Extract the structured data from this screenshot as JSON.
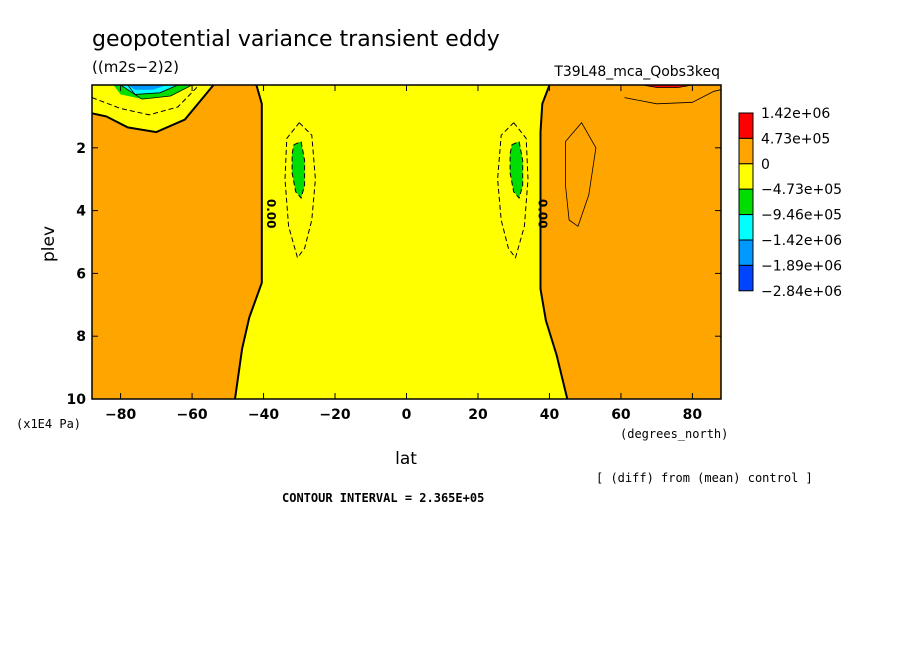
{
  "chart_data": {
    "type": "heatmap",
    "title": "geopotential variance transient eddy",
    "units": "((m2s−2)2)",
    "run_label": "T39L48_mca_Qobs3keq",
    "xlabel": "lat",
    "xunits": "(degrees_north)",
    "ylabel": "plev",
    "yunits": "(x1E4 Pa)",
    "xlim": [
      -88,
      88
    ],
    "ylim": [
      10,
      0
    ],
    "x_ticks": [
      -80,
      -60,
      -40,
      -20,
      0,
      20,
      40,
      60,
      80
    ],
    "x_tick_labels": [
      "−80",
      "−60",
      "−40",
      "−20",
      "0",
      "20",
      "40",
      "60",
      "80"
    ],
    "y_ticks": [
      2,
      4,
      6,
      8,
      10
    ],
    "y_tick_labels": [
      "2",
      "4",
      "6",
      "8",
      "10"
    ],
    "diff_note": "[ (diff) from (mean) control ]",
    "contour_interval": "CONTOUR INTERVAL = 2.365E+05",
    "contour_labels": [
      {
        "text": "0.00",
        "lat": -39,
        "plev": 4.1
      },
      {
        "text": "0.00",
        "lat": 37,
        "plev": 4.1
      }
    ],
    "legend": {
      "labels": [
        "1.42e+06",
        "4.73e+05",
        "0",
        "−4.73e+05",
        "−9.46e+05",
        "−1.42e+06",
        "−1.89e+06",
        "−2.84e+06"
      ],
      "colors": [
        "#ff0000",
        "#ffa500",
        "#ffff00",
        "#00dd00",
        "#00ffff",
        "#0099ff",
        "#0044ff"
      ]
    },
    "regions": [
      {
        "name": "southern-positive",
        "color": "#ffa500",
        "polygon": [
          [
            -88,
            0
          ],
          [
            -42,
            0
          ],
          [
            -40.5,
            0.6
          ],
          [
            -40.5,
            6.3
          ],
          [
            -44,
            7.4
          ],
          [
            -46,
            8.4
          ],
          [
            -48,
            10
          ],
          [
            -88,
            10
          ]
        ]
      },
      {
        "name": "northern-positive",
        "color": "#ffa500",
        "polygon": [
          [
            88,
            0
          ],
          [
            40,
            0
          ],
          [
            38,
            0.6
          ],
          [
            37.5,
            1.5
          ],
          [
            37.5,
            6.5
          ],
          [
            39,
            7.5
          ],
          [
            42,
            8.6
          ],
          [
            45,
            10
          ],
          [
            88,
            10
          ]
        ]
      },
      {
        "name": "polar-negative",
        "color": "#ffff00",
        "polygon": [
          [
            -88,
            0
          ],
          [
            -54,
            0
          ],
          [
            -62,
            1.1
          ],
          [
            -70,
            1.5
          ],
          [
            -78,
            1.35
          ],
          [
            -84,
            1.0
          ],
          [
            -88,
            0.9
          ]
        ]
      },
      {
        "name": "south-negative-core",
        "color": "#00dd00",
        "polygon": [
          [
            -31.5,
            1.9
          ],
          [
            -29.5,
            1.8
          ],
          [
            -28.5,
            2.4
          ],
          [
            -28.5,
            3.2
          ],
          [
            -29.5,
            3.6
          ],
          [
            -31,
            3.4
          ],
          [
            -32,
            2.8
          ],
          [
            -32,
            2.2
          ]
        ]
      },
      {
        "name": "north-negative-core",
        "color": "#00dd00",
        "polygon": [
          [
            29.5,
            1.9
          ],
          [
            31.5,
            1.8
          ],
          [
            32.5,
            2.4
          ],
          [
            32.5,
            3.2
          ],
          [
            31.5,
            3.6
          ],
          [
            30,
            3.4
          ],
          [
            29,
            2.8
          ],
          [
            29,
            2.2
          ]
        ]
      },
      {
        "name": "polar-strong-green",
        "color": "#00dd00",
        "polygon": [
          [
            -82,
            0
          ],
          [
            -60,
            0
          ],
          [
            -66,
            0.35
          ],
          [
            -74,
            0.45
          ],
          [
            -80,
            0.3
          ]
        ]
      },
      {
        "name": "polar-cyan",
        "color": "#00ffff",
        "polygon": [
          [
            -80,
            0
          ],
          [
            -64,
            0
          ],
          [
            -69,
            0.25
          ],
          [
            -76,
            0.3
          ]
        ]
      },
      {
        "name": "polar-blue",
        "color": "#0099ff",
        "polygon": [
          [
            -78,
            0
          ],
          [
            -67,
            0
          ],
          [
            -71,
            0.15
          ],
          [
            -76,
            0.15
          ]
        ]
      },
      {
        "name": "north-red",
        "color": "#ff0000",
        "polygon": [
          [
            66,
            0
          ],
          [
            80,
            0
          ],
          [
            76,
            0.08
          ],
          [
            70,
            0.08
          ]
        ]
      }
    ],
    "contours": [
      {
        "style": "solid",
        "points": [
          [
            -42,
            0
          ],
          [
            -40.5,
            0.6
          ],
          [
            -40.5,
            6.3
          ],
          [
            -44,
            7.4
          ],
          [
            -46,
            8.4
          ],
          [
            -48,
            10
          ]
        ]
      },
      {
        "style": "solid",
        "points": [
          [
            40,
            0
          ],
          [
            38,
            0.6
          ],
          [
            37.5,
            1.5
          ],
          [
            37.5,
            6.5
          ],
          [
            39,
            7.5
          ],
          [
            42,
            8.6
          ],
          [
            45,
            10
          ]
        ]
      },
      {
        "style": "solid",
        "points": [
          [
            -88,
            0.9
          ],
          [
            -84,
            1.0
          ],
          [
            -78,
            1.35
          ],
          [
            -70,
            1.5
          ],
          [
            -62,
            1.1
          ],
          [
            -54,
            0
          ]
        ]
      },
      {
        "style": "dashed",
        "points": [
          [
            -88,
            0.4
          ],
          [
            -80,
            0.75
          ],
          [
            -72,
            0.95
          ],
          [
            -64,
            0.7
          ],
          [
            -58,
            0
          ]
        ]
      },
      {
        "style": "dashed",
        "points": [
          [
            -30,
            1.2
          ],
          [
            -26.5,
            1.6
          ],
          [
            -25.5,
            3.0
          ],
          [
            -26.5,
            4.3
          ],
          [
            -28.5,
            5.2
          ],
          [
            -30.5,
            5.5
          ],
          [
            -33,
            4.5
          ],
          [
            -34,
            3.0
          ],
          [
            -33.5,
            1.7
          ],
          [
            -30,
            1.2
          ]
        ]
      },
      {
        "style": "dashed",
        "points": [
          [
            30,
            1.2
          ],
          [
            33.5,
            1.7
          ],
          [
            34,
            3.0
          ],
          [
            33,
            4.5
          ],
          [
            30.5,
            5.5
          ],
          [
            28.5,
            5.2
          ],
          [
            26.5,
            4.3
          ],
          [
            25.5,
            3.0
          ],
          [
            26.5,
            1.6
          ],
          [
            30,
            1.2
          ]
        ]
      },
      {
        "style": "dashed",
        "points": [
          [
            -31.5,
            1.9
          ],
          [
            -29.5,
            1.8
          ],
          [
            -28.5,
            2.4
          ],
          [
            -28.5,
            3.2
          ],
          [
            -29.5,
            3.6
          ],
          [
            -31,
            3.4
          ],
          [
            -32,
            2.8
          ],
          [
            -32,
            2.2
          ],
          [
            -31.5,
            1.9
          ]
        ]
      },
      {
        "style": "dashed",
        "points": [
          [
            29.5,
            1.9
          ],
          [
            31.5,
            1.8
          ],
          [
            32.5,
            2.4
          ],
          [
            32.5,
            3.2
          ],
          [
            31.5,
            3.6
          ],
          [
            30,
            3.4
          ],
          [
            29,
            2.8
          ],
          [
            29,
            2.2
          ],
          [
            29.5,
            1.9
          ]
        ]
      },
      {
        "style": "thin",
        "points": [
          [
            44.5,
            1.8
          ],
          [
            49,
            1.2
          ],
          [
            53,
            2.0
          ],
          [
            51,
            3.5
          ],
          [
            48,
            4.5
          ],
          [
            45.5,
            4.3
          ],
          [
            44.5,
            3.2
          ],
          [
            44.5,
            1.8
          ]
        ]
      },
      {
        "style": "thin",
        "points": [
          [
            61,
            0.4
          ],
          [
            70,
            0.6
          ],
          [
            80,
            0.55
          ],
          [
            86,
            0.2
          ],
          [
            88,
            0.15
          ]
        ]
      },
      {
        "style": "thin",
        "points": [
          [
            -80,
            0
          ],
          [
            -74,
            0.45
          ],
          [
            -66,
            0.35
          ],
          [
            -60,
            0
          ]
        ]
      },
      {
        "style": "thin",
        "points": [
          [
            -78,
            0
          ],
          [
            -76,
            0.3
          ],
          [
            -69,
            0.25
          ],
          [
            -64,
            0
          ]
        ]
      },
      {
        "style": "thin",
        "points": [
          [
            66,
            0
          ],
          [
            70,
            0.08
          ],
          [
            76,
            0.08
          ],
          [
            80,
            0
          ]
        ]
      }
    ]
  }
}
